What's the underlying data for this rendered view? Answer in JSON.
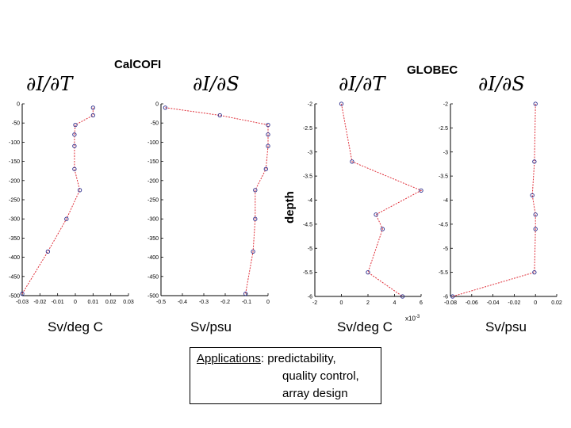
{
  "titles": {
    "calcofi": "CalCOFI",
    "globec": "GLOBEC"
  },
  "depth_label": "depth",
  "derivatives": [
    "∂I/∂T",
    "∂I/∂S",
    "∂I/∂T",
    "∂I/∂S"
  ],
  "units": [
    "Sv/deg C",
    "Sv/psu",
    "Sv/deg C",
    "Sv/psu"
  ],
  "exponent_label": "x10",
  "exponent_power": "-3",
  "applications": {
    "heading": "Applications",
    "line1_rest": ": predictability,",
    "line2": "quality control,",
    "line3": "array design"
  },
  "colors": {
    "line": "#e0303a",
    "marker": "#2a2a8a",
    "axis": "#000000"
  },
  "chart_data": [
    {
      "type": "line",
      "group": "CalCOFI",
      "title": "∂I/∂T",
      "xlabel": "Sv/deg C",
      "ylabel": "",
      "xlim": [
        -0.03,
        0.03
      ],
      "ylim": [
        -500,
        0
      ],
      "xticks": [
        -0.03,
        -0.02,
        -0.01,
        0,
        0.01,
        0.02,
        0.03
      ],
      "xtick_labels": [
        "-0.03",
        "-0.02",
        "-0.01",
        "0",
        "0.01",
        "0.02",
        "0.03"
      ],
      "yticks": [
        0,
        -50,
        -100,
        -150,
        -200,
        -250,
        -300,
        -350,
        -400,
        -450,
        -500
      ],
      "ytick_labels": [
        "0",
        "-50",
        "-100",
        "-150",
        "-200",
        "-250",
        "-300",
        "-350",
        "-400",
        "-450",
        "-500"
      ],
      "x": [
        0.01,
        0.01,
        0.0,
        -0.0005,
        -0.0005,
        -0.0005,
        0.0025,
        -0.005,
        -0.0155,
        -0.03
      ],
      "y": [
        -10,
        -30,
        -55,
        -80,
        -110,
        -170,
        -225,
        -300,
        -385,
        -495
      ]
    },
    {
      "type": "line",
      "group": "CalCOFI",
      "title": "∂I/∂S",
      "xlabel": "Sv/psu",
      "ylabel": "",
      "xlim": [
        -0.5,
        0
      ],
      "ylim": [
        -500,
        0
      ],
      "xticks": [
        -0.5,
        -0.4,
        -0.3,
        -0.2,
        -0.1,
        0
      ],
      "xtick_labels": [
        "-0.5",
        "-0.4",
        "-0.3",
        "-0.2",
        "-0.1",
        "0"
      ],
      "yticks": [
        0,
        -50,
        -100,
        -150,
        -200,
        -250,
        -300,
        -350,
        -400,
        -450,
        -500
      ],
      "ytick_labels": [
        "0",
        "-50",
        "-100",
        "-150",
        "-200",
        "-250",
        "-300",
        "-350",
        "-400",
        "-450",
        "-500"
      ],
      "x": [
        -0.48,
        -0.225,
        0.0,
        0.0,
        0.0,
        -0.01,
        -0.06,
        -0.06,
        -0.07,
        -0.105
      ],
      "y": [
        -10,
        -30,
        -55,
        -80,
        -110,
        -170,
        -225,
        -300,
        -385,
        -495
      ]
    },
    {
      "type": "line",
      "group": "GLOBEC",
      "title": "∂I/∂T",
      "xlabel": "Sv/deg C",
      "ylabel": "depth",
      "x_scale_note": "x10^-3",
      "xlim": [
        -2,
        6
      ],
      "ylim": [
        -6,
        -2
      ],
      "xticks": [
        -2,
        0,
        2,
        4,
        6
      ],
      "xtick_labels": [
        "-2",
        "0",
        "2",
        "4",
        "6"
      ],
      "yticks": [
        -2,
        -2.5,
        -3,
        -3.5,
        -4,
        -4.5,
        -5,
        -5.5,
        -6
      ],
      "ytick_labels": [
        "-2",
        "-2.5",
        "-3",
        "-3.5",
        "-4",
        "-4.5",
        "-5",
        "-5.5",
        "-6"
      ],
      "x": [
        0.0,
        0.8,
        6.0,
        2.6,
        3.1,
        2.0,
        4.6
      ],
      "y": [
        -2.0,
        -3.2,
        -3.8,
        -4.3,
        -4.6,
        -5.5,
        -6.0
      ]
    },
    {
      "type": "line",
      "group": "GLOBEC",
      "title": "∂I/∂S",
      "xlabel": "Sv/psu",
      "ylabel": "",
      "xlim": [
        -0.08,
        0.02
      ],
      "ylim": [
        -6,
        -2
      ],
      "xticks": [
        -0.08,
        -0.06,
        -0.04,
        -0.02,
        0,
        0.02
      ],
      "xtick_labels": [
        "-0.08",
        "-0.06",
        "-0.04",
        "-0.02",
        "0",
        "0.02"
      ],
      "yticks": [
        -2,
        -2.5,
        -3,
        -3.5,
        -4,
        -4.5,
        -5,
        -5.5,
        -6
      ],
      "ytick_labels": [
        "-2",
        "-2.5",
        "-3",
        "-3.5",
        "-4",
        "-4.5",
        "-5",
        "-5.5",
        "-6"
      ],
      "x": [
        0.0,
        -0.001,
        -0.003,
        0.0,
        0.0,
        -0.001,
        -0.078
      ],
      "y": [
        -2.0,
        -3.2,
        -3.9,
        -4.3,
        -4.6,
        -5.5,
        -6.0
      ]
    }
  ]
}
